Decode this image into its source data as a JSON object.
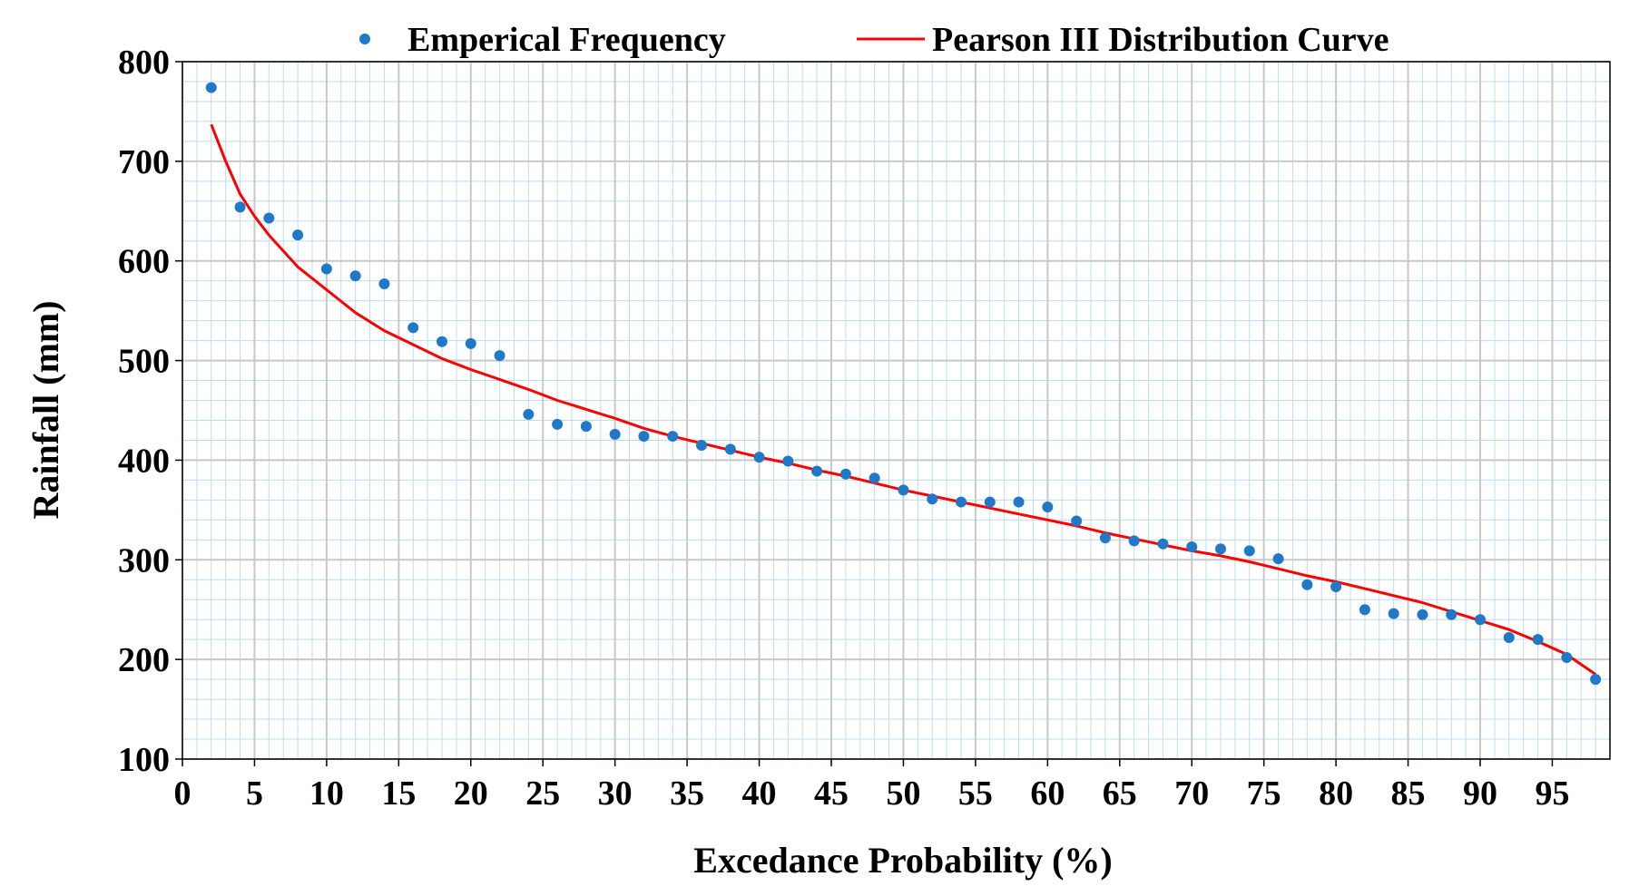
{
  "chart_data": {
    "type": "scatter+line",
    "title": "",
    "xlabel": "Excedance Probability (%)",
    "ylabel": "Rainfall (mm)",
    "xlim": [
      0,
      99
    ],
    "ylim": [
      100,
      800
    ],
    "x_major_ticks": [
      0,
      5,
      10,
      15,
      20,
      25,
      30,
      35,
      40,
      45,
      50,
      55,
      60,
      65,
      70,
      75,
      80,
      85,
      90,
      95
    ],
    "y_major_ticks": [
      100,
      200,
      300,
      400,
      500,
      600,
      700,
      800
    ],
    "x_minor_step": 1,
    "y_minor_step": 20,
    "grid": true,
    "legend_position": "top-center",
    "colors": {
      "scatter": "#1f78c8",
      "line": "#ff0000",
      "major_grid": "#c8c8c8",
      "minor_grid": "#bcdcf2",
      "axis": "#000000"
    },
    "series": [
      {
        "name": "Emperical Frequency",
        "kind": "scatter",
        "x": [
          2,
          4,
          6,
          8,
          10,
          12,
          14,
          16,
          18,
          20,
          22,
          24,
          26,
          28,
          30,
          32,
          34,
          36,
          38,
          40,
          42,
          44,
          46,
          48,
          50,
          52,
          54,
          56,
          58,
          60,
          62,
          64,
          66,
          68,
          70,
          72,
          74,
          76,
          78,
          80,
          82,
          84,
          86,
          88,
          90,
          92,
          94,
          96,
          98
        ],
        "y": [
          774,
          654,
          643,
          626,
          592,
          585,
          577,
          533,
          519,
          517,
          505,
          446,
          436,
          434,
          426,
          424,
          424,
          415,
          411,
          403,
          399,
          389,
          386,
          382,
          370,
          361,
          358,
          358,
          358,
          353,
          339,
          322,
          319,
          316,
          313,
          311,
          309,
          301,
          275,
          273,
          250,
          246,
          245,
          245,
          240,
          222,
          220,
          202,
          180
        ]
      },
      {
        "name": "Pearson III Distribution Curve",
        "kind": "line",
        "x": [
          2,
          3,
          4,
          5,
          6,
          8,
          10,
          12,
          14,
          16,
          18,
          20,
          22,
          24,
          26,
          28,
          30,
          32,
          34,
          36,
          38,
          40,
          42,
          44,
          46,
          48,
          50,
          52,
          54,
          56,
          58,
          60,
          62,
          64,
          66,
          68,
          70,
          72,
          74,
          76,
          78,
          80,
          82,
          84,
          86,
          88,
          90,
          92,
          94,
          96,
          97,
          98
        ],
        "y": [
          737,
          700,
          667,
          645,
          626,
          594,
          571,
          548,
          530,
          516,
          502,
          491,
          481,
          471,
          460,
          451,
          442,
          432,
          424,
          417,
          410,
          403,
          397,
          390,
          384,
          377,
          370,
          364,
          358,
          352,
          346,
          340,
          334,
          327,
          321,
          315,
          309,
          304,
          298,
          291,
          284,
          278,
          271,
          264,
          257,
          248,
          239,
          230,
          218,
          205,
          195,
          185
        ]
      }
    ]
  }
}
